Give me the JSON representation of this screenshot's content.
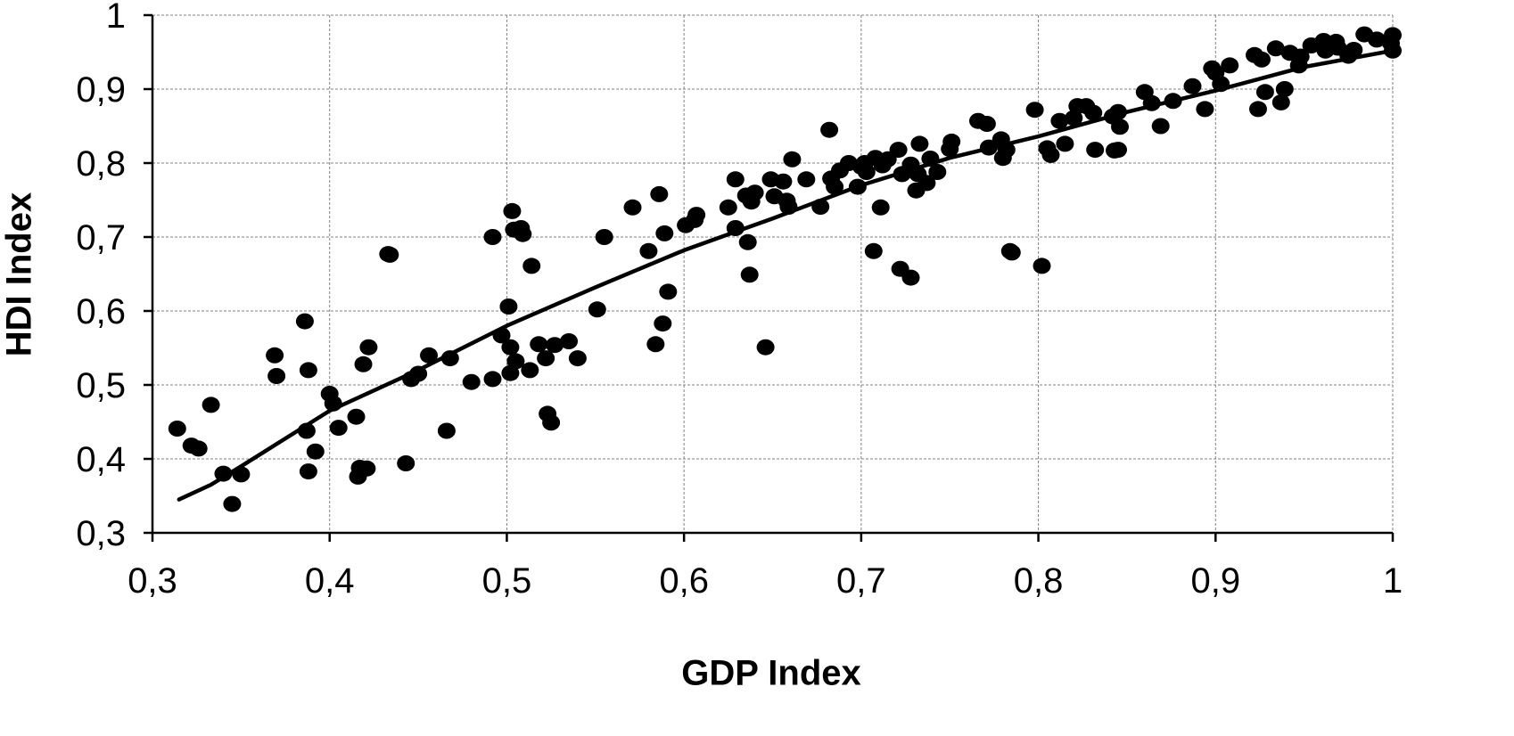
{
  "chart_data": {
    "type": "scatter",
    "title": "",
    "xlabel": "GDP Index",
    "ylabel": "HDI Index",
    "xlim": [
      0.3,
      1.0
    ],
    "ylim": [
      0.3,
      1.0
    ],
    "x_ticks": [
      0.3,
      0.4,
      0.5,
      0.6,
      0.7,
      0.8,
      0.9,
      1.0
    ],
    "y_ticks": [
      0.3,
      0.4,
      0.5,
      0.6,
      0.7,
      0.8,
      0.9,
      1.0
    ],
    "x_tick_labels": [
      "0,3",
      "0,4",
      "0,5",
      "0,6",
      "0,7",
      "0,8",
      "0,9",
      "1"
    ],
    "y_tick_labels": [
      "0,3",
      "0,4",
      "0,5",
      "0,6",
      "0,7",
      "0,8",
      "0,9",
      "1"
    ],
    "grid": true,
    "legend": "none",
    "points": [
      [
        0.314,
        0.441
      ],
      [
        0.322,
        0.418
      ],
      [
        0.326,
        0.414
      ],
      [
        0.333,
        0.473
      ],
      [
        0.34,
        0.38
      ],
      [
        0.345,
        0.339
      ],
      [
        0.35,
        0.379
      ],
      [
        0.369,
        0.54
      ],
      [
        0.37,
        0.512
      ],
      [
        0.386,
        0.586
      ],
      [
        0.387,
        0.438
      ],
      [
        0.388,
        0.52
      ],
      [
        0.388,
        0.383
      ],
      [
        0.392,
        0.41
      ],
      [
        0.4,
        0.488
      ],
      [
        0.402,
        0.475
      ],
      [
        0.405,
        0.442
      ],
      [
        0.415,
        0.457
      ],
      [
        0.416,
        0.376
      ],
      [
        0.417,
        0.388
      ],
      [
        0.419,
        0.528
      ],
      [
        0.421,
        0.387
      ],
      [
        0.422,
        0.551
      ],
      [
        0.433,
        0.677
      ],
      [
        0.434,
        0.676
      ],
      [
        0.443,
        0.394
      ],
      [
        0.446,
        0.508
      ],
      [
        0.45,
        0.515
      ],
      [
        0.456,
        0.54
      ],
      [
        0.466,
        0.438
      ],
      [
        0.468,
        0.536
      ],
      [
        0.48,
        0.504
      ],
      [
        0.492,
        0.7
      ],
      [
        0.492,
        0.508
      ],
      [
        0.497,
        0.567
      ],
      [
        0.501,
        0.606
      ],
      [
        0.502,
        0.516
      ],
      [
        0.502,
        0.551
      ],
      [
        0.503,
        0.735
      ],
      [
        0.504,
        0.71
      ],
      [
        0.505,
        0.532
      ],
      [
        0.508,
        0.712
      ],
      [
        0.509,
        0.704
      ],
      [
        0.513,
        0.52
      ],
      [
        0.514,
        0.661
      ],
      [
        0.518,
        0.555
      ],
      [
        0.522,
        0.536
      ],
      [
        0.523,
        0.461
      ],
      [
        0.525,
        0.449
      ],
      [
        0.527,
        0.554
      ],
      [
        0.535,
        0.559
      ],
      [
        0.54,
        0.536
      ],
      [
        0.551,
        0.602
      ],
      [
        0.555,
        0.7
      ],
      [
        0.571,
        0.74
      ],
      [
        0.58,
        0.681
      ],
      [
        0.584,
        0.555
      ],
      [
        0.586,
        0.758
      ],
      [
        0.588,
        0.583
      ],
      [
        0.589,
        0.705
      ],
      [
        0.591,
        0.626
      ],
      [
        0.601,
        0.716
      ],
      [
        0.606,
        0.723
      ],
      [
        0.607,
        0.73
      ],
      [
        0.625,
        0.74
      ],
      [
        0.629,
        0.712
      ],
      [
        0.629,
        0.778
      ],
      [
        0.635,
        0.756
      ],
      [
        0.636,
        0.693
      ],
      [
        0.637,
        0.649
      ],
      [
        0.638,
        0.748
      ],
      [
        0.64,
        0.76
      ],
      [
        0.646,
        0.551
      ],
      [
        0.649,
        0.778
      ],
      [
        0.651,
        0.755
      ],
      [
        0.656,
        0.775
      ],
      [
        0.658,
        0.749
      ],
      [
        0.659,
        0.741
      ],
      [
        0.661,
        0.805
      ],
      [
        0.669,
        0.778
      ],
      [
        0.677,
        0.741
      ],
      [
        0.682,
        0.845
      ],
      [
        0.683,
        0.779
      ],
      [
        0.685,
        0.768
      ],
      [
        0.688,
        0.79
      ],
      [
        0.693,
        0.8
      ],
      [
        0.698,
        0.768
      ],
      [
        0.7,
        0.795
      ],
      [
        0.702,
        0.8
      ],
      [
        0.703,
        0.788
      ],
      [
        0.707,
        0.681
      ],
      [
        0.708,
        0.807
      ],
      [
        0.711,
        0.74
      ],
      [
        0.712,
        0.797
      ],
      [
        0.715,
        0.805
      ],
      [
        0.721,
        0.818
      ],
      [
        0.722,
        0.657
      ],
      [
        0.723,
        0.785
      ],
      [
        0.728,
        0.798
      ],
      [
        0.728,
        0.645
      ],
      [
        0.731,
        0.763
      ],
      [
        0.732,
        0.785
      ],
      [
        0.733,
        0.826
      ],
      [
        0.737,
        0.773
      ],
      [
        0.739,
        0.806
      ],
      [
        0.743,
        0.788
      ],
      [
        0.75,
        0.819
      ],
      [
        0.751,
        0.829
      ],
      [
        0.766,
        0.857
      ],
      [
        0.771,
        0.853
      ],
      [
        0.772,
        0.821
      ],
      [
        0.779,
        0.832
      ],
      [
        0.78,
        0.807
      ],
      [
        0.782,
        0.818
      ],
      [
        0.784,
        0.681
      ],
      [
        0.785,
        0.679
      ],
      [
        0.798,
        0.872
      ],
      [
        0.802,
        0.661
      ],
      [
        0.805,
        0.82
      ],
      [
        0.807,
        0.811
      ],
      [
        0.812,
        0.857
      ],
      [
        0.815,
        0.826
      ],
      [
        0.82,
        0.861
      ],
      [
        0.822,
        0.877
      ],
      [
        0.827,
        0.877
      ],
      [
        0.831,
        0.868
      ],
      [
        0.832,
        0.818
      ],
      [
        0.842,
        0.863
      ],
      [
        0.843,
        0.817
      ],
      [
        0.845,
        0.818
      ],
      [
        0.845,
        0.869
      ],
      [
        0.846,
        0.849
      ],
      [
        0.86,
        0.896
      ],
      [
        0.864,
        0.881
      ],
      [
        0.869,
        0.85
      ],
      [
        0.876,
        0.884
      ],
      [
        0.887,
        0.904
      ],
      [
        0.894,
        0.873
      ],
      [
        0.898,
        0.928
      ],
      [
        0.9,
        0.922
      ],
      [
        0.903,
        0.907
      ],
      [
        0.908,
        0.932
      ],
      [
        0.922,
        0.946
      ],
      [
        0.924,
        0.873
      ],
      [
        0.926,
        0.94
      ],
      [
        0.928,
        0.896
      ],
      [
        0.934,
        0.955
      ],
      [
        0.937,
        0.882
      ],
      [
        0.939,
        0.9
      ],
      [
        0.942,
        0.949
      ],
      [
        0.947,
        0.932
      ],
      [
        0.948,
        0.944
      ],
      [
        0.954,
        0.959
      ],
      [
        0.961,
        0.965
      ],
      [
        0.962,
        0.952
      ],
      [
        0.965,
        0.96
      ],
      [
        0.966,
        0.96
      ],
      [
        0.968,
        0.964
      ],
      [
        0.969,
        0.956
      ],
      [
        0.975,
        0.945
      ],
      [
        0.978,
        0.953
      ],
      [
        0.984,
        0.974
      ],
      [
        0.991,
        0.967
      ],
      [
        0.999,
        0.962
      ],
      [
        1.0,
        0.952
      ],
      [
        1.0,
        0.973
      ]
    ],
    "trendline": [
      [
        0.315,
        0.345
      ],
      [
        0.333,
        0.365
      ],
      [
        0.35,
        0.39
      ],
      [
        0.37,
        0.42
      ],
      [
        0.4,
        0.465
      ],
      [
        0.45,
        0.52
      ],
      [
        0.5,
        0.58
      ],
      [
        0.55,
        0.632
      ],
      [
        0.6,
        0.682
      ],
      [
        0.65,
        0.725
      ],
      [
        0.7,
        0.77
      ],
      [
        0.75,
        0.807
      ],
      [
        0.8,
        0.836
      ],
      [
        0.85,
        0.869
      ],
      [
        0.9,
        0.898
      ],
      [
        0.95,
        0.93
      ],
      [
        1.0,
        0.952
      ]
    ]
  }
}
